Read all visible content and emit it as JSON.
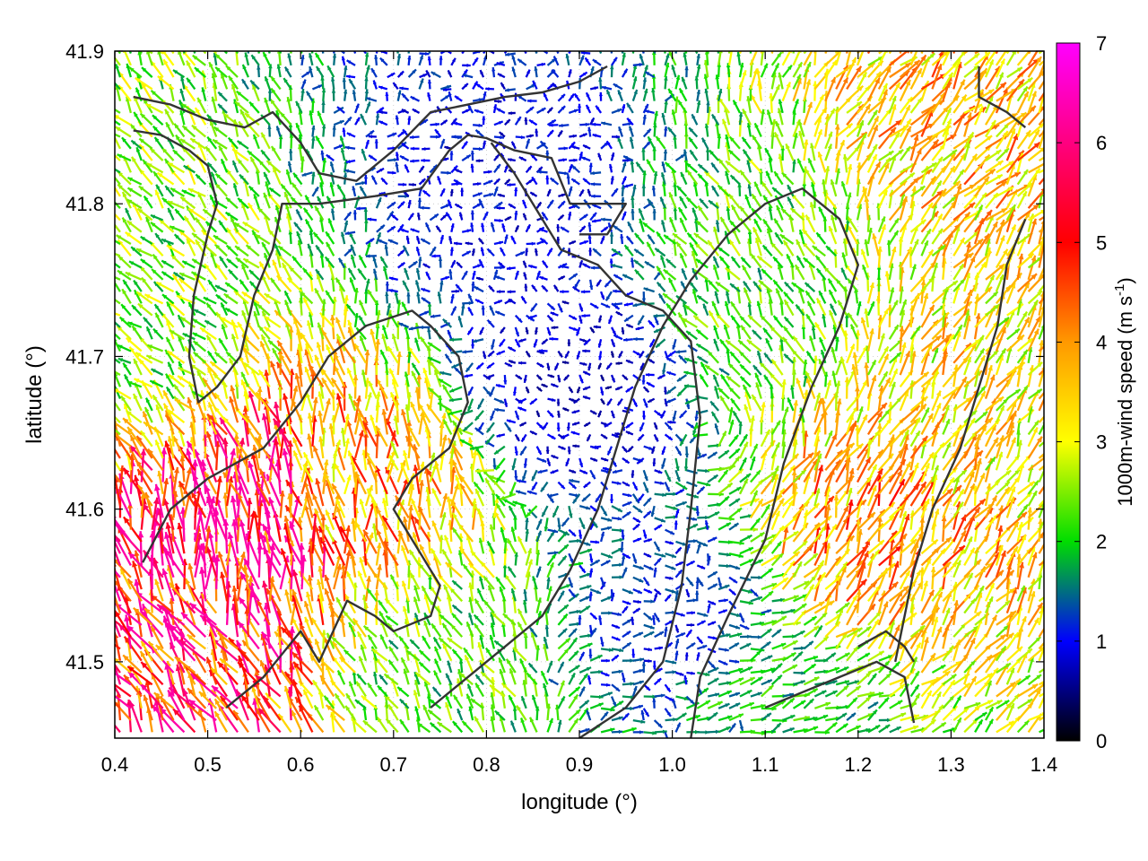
{
  "chart_data": {
    "type": "vector_field",
    "xlabel": "longitude (°)",
    "ylabel": "latitude (°)",
    "xlim": [
      0.4,
      1.4
    ],
    "ylim": [
      41.45,
      41.9
    ],
    "x_ticks": [
      0.4,
      0.5,
      0.6,
      0.7,
      0.8,
      0.9,
      1.0,
      1.1,
      1.2,
      1.3,
      1.4
    ],
    "x_tick_labels": [
      "0.4",
      "0.5",
      "0.6",
      "0.7",
      "0.8",
      "0.9",
      "1.0",
      "1.1",
      "1.2",
      "1.3",
      "1.4"
    ],
    "y_ticks": [
      41.5,
      41.6,
      41.7,
      41.8,
      41.9
    ],
    "y_tick_labels": [
      "41.5",
      "41.6",
      "41.7",
      "41.8",
      "41.9"
    ],
    "grid": true,
    "legend": "none",
    "colorbar": {
      "label": "1000m-wind speed (m s",
      "label_superscript": "-1",
      "label_suffix": ")",
      "range": [
        0,
        7
      ],
      "ticks": [
        0,
        1,
        2,
        3,
        4,
        5,
        6,
        7
      ],
      "tick_labels": [
        "0",
        "1",
        "2",
        "3",
        "4",
        "5",
        "6",
        "7"
      ],
      "colors": [
        "#000000",
        "#0000ff",
        "#00dd00",
        "#ffff00",
        "#ff9900",
        "#ff0000",
        "#ff00ff"
      ]
    },
    "wind_speed_cores": [
      {
        "lon": 0.53,
        "lat": 41.57,
        "speed": 6.3,
        "direction_deg": 350
      },
      {
        "lon": 0.47,
        "lat": 41.5,
        "speed": 5.8,
        "direction_deg": 330
      },
      {
        "lon": 0.68,
        "lat": 41.6,
        "speed": 4.5,
        "direction_deg": 355
      },
      {
        "lon": 1.2,
        "lat": 41.58,
        "speed": 4.5,
        "direction_deg": 25
      },
      {
        "lon": 1.3,
        "lat": 41.85,
        "speed": 4.2,
        "direction_deg": 40
      },
      {
        "lon": 1.33,
        "lat": 41.7,
        "speed": 3.8,
        "direction_deg": 30
      },
      {
        "lon": 0.9,
        "lat": 41.68,
        "speed": 0.9,
        "direction_deg": 200
      },
      {
        "lon": 0.82,
        "lat": 41.8,
        "speed": 1.1,
        "direction_deg": 0
      },
      {
        "lon": 1.0,
        "lat": 41.53,
        "speed": 1.3,
        "direction_deg": 90
      },
      {
        "lon": 0.75,
        "lat": 41.5,
        "speed": 2.6,
        "direction_deg": 330
      },
      {
        "lon": 0.42,
        "lat": 41.72,
        "speed": 2.8,
        "direction_deg": 315
      },
      {
        "lon": 1.1,
        "lat": 41.75,
        "speed": 2.6,
        "direction_deg": 330
      },
      {
        "lon": 1.1,
        "lat": 41.47,
        "speed": 2.2,
        "direction_deg": 70
      }
    ],
    "contour_lines": [
      [
        [
          0.42,
          41.87
        ],
        [
          0.46,
          41.865
        ],
        [
          0.5,
          41.855
        ],
        [
          0.54,
          41.85
        ],
        [
          0.57,
          41.86
        ],
        [
          0.6,
          41.84
        ],
        [
          0.62,
          41.82
        ],
        [
          0.66,
          41.815
        ],
        [
          0.7,
          41.835
        ],
        [
          0.74,
          41.86
        ],
        [
          0.78,
          41.865
        ],
        [
          0.82,
          41.87
        ],
        [
          0.86,
          41.873
        ],
        [
          0.9,
          41.88
        ],
        [
          0.93,
          41.89
        ]
      ],
      [
        [
          0.42,
          41.848
        ],
        [
          0.45,
          41.845
        ],
        [
          0.48,
          41.835
        ],
        [
          0.5,
          41.825
        ],
        [
          0.51,
          41.8
        ],
        [
          0.5,
          41.78
        ],
        [
          0.485,
          41.74
        ],
        [
          0.48,
          41.7
        ],
        [
          0.49,
          41.67
        ],
        [
          0.51,
          41.68
        ],
        [
          0.535,
          41.7
        ],
        [
          0.55,
          41.74
        ],
        [
          0.57,
          41.77
        ],
        [
          0.58,
          41.8
        ],
        [
          0.62,
          41.8
        ],
        [
          0.68,
          41.805
        ],
        [
          0.73,
          41.81
        ],
        [
          0.76,
          41.835
        ],
        [
          0.78,
          41.845
        ],
        [
          0.8,
          41.843
        ],
        [
          0.83,
          41.835
        ],
        [
          0.87,
          41.83
        ],
        [
          0.89,
          41.8
        ],
        [
          0.92,
          41.8
        ],
        [
          0.95,
          41.8
        ],
        [
          0.93,
          41.78
        ],
        [
          0.9,
          41.78
        ]
      ],
      [
        [
          0.805,
          41.84
        ],
        [
          0.83,
          41.82
        ],
        [
          0.88,
          41.77
        ],
        [
          0.92,
          41.76
        ],
        [
          0.95,
          41.74
        ],
        [
          0.99,
          41.73
        ],
        [
          1.02,
          41.71
        ],
        [
          1.03,
          41.66
        ],
        [
          1.02,
          41.6
        ],
        [
          1.01,
          41.55
        ],
        [
          0.99,
          41.5
        ],
        [
          0.95,
          41.47
        ],
        [
          0.9,
          41.45
        ]
      ],
      [
        [
          0.43,
          41.565
        ],
        [
          0.46,
          41.6
        ],
        [
          0.5,
          41.62
        ],
        [
          0.56,
          41.64
        ],
        [
          0.6,
          41.67
        ],
        [
          0.63,
          41.7
        ],
        [
          0.67,
          41.72
        ],
        [
          0.72,
          41.73
        ],
        [
          0.74,
          41.72
        ],
        [
          0.77,
          41.7
        ],
        [
          0.78,
          41.67
        ],
        [
          0.76,
          41.64
        ],
        [
          0.72,
          41.62
        ],
        [
          0.7,
          41.6
        ],
        [
          0.72,
          41.58
        ],
        [
          0.75,
          41.55
        ],
        [
          0.74,
          41.53
        ],
        [
          0.7,
          41.52
        ],
        [
          0.68,
          41.53
        ],
        [
          0.65,
          41.54
        ],
        [
          0.62,
          41.5
        ],
        [
          0.6,
          41.52
        ],
        [
          0.56,
          41.49
        ],
        [
          0.52,
          41.47
        ]
      ],
      [
        [
          0.74,
          41.47
        ],
        [
          0.78,
          41.49
        ],
        [
          0.82,
          41.51
        ],
        [
          0.86,
          41.53
        ],
        [
          0.89,
          41.56
        ],
        [
          0.92,
          41.6
        ],
        [
          0.94,
          41.64
        ],
        [
          0.96,
          41.68
        ],
        [
          0.99,
          41.72
        ],
        [
          1.02,
          41.75
        ],
        [
          1.06,
          41.78
        ],
        [
          1.1,
          41.8
        ],
        [
          1.14,
          41.81
        ],
        [
          1.18,
          41.79
        ],
        [
          1.2,
          41.76
        ],
        [
          1.18,
          41.72
        ],
        [
          1.15,
          41.68
        ],
        [
          1.12,
          41.63
        ],
        [
          1.1,
          41.58
        ],
        [
          1.06,
          41.53
        ],
        [
          1.03,
          41.49
        ],
        [
          1.02,
          41.45
        ]
      ],
      [
        [
          1.1,
          41.47
        ],
        [
          1.14,
          41.48
        ],
        [
          1.18,
          41.49
        ],
        [
          1.22,
          41.5
        ],
        [
          1.25,
          41.49
        ],
        [
          1.26,
          41.46
        ]
      ],
      [
        [
          1.2,
          41.51
        ],
        [
          1.23,
          41.52
        ],
        [
          1.25,
          41.51
        ],
        [
          1.26,
          41.5
        ]
      ],
      [
        [
          1.24,
          41.5
        ],
        [
          1.26,
          41.56
        ],
        [
          1.28,
          41.6
        ],
        [
          1.31,
          41.64
        ],
        [
          1.33,
          41.68
        ],
        [
          1.35,
          41.72
        ],
        [
          1.36,
          41.76
        ],
        [
          1.38,
          41.79
        ]
      ],
      [
        [
          1.33,
          41.89
        ],
        [
          1.33,
          41.87
        ],
        [
          1.36,
          41.86
        ],
        [
          1.38,
          41.85
        ]
      ]
    ]
  }
}
